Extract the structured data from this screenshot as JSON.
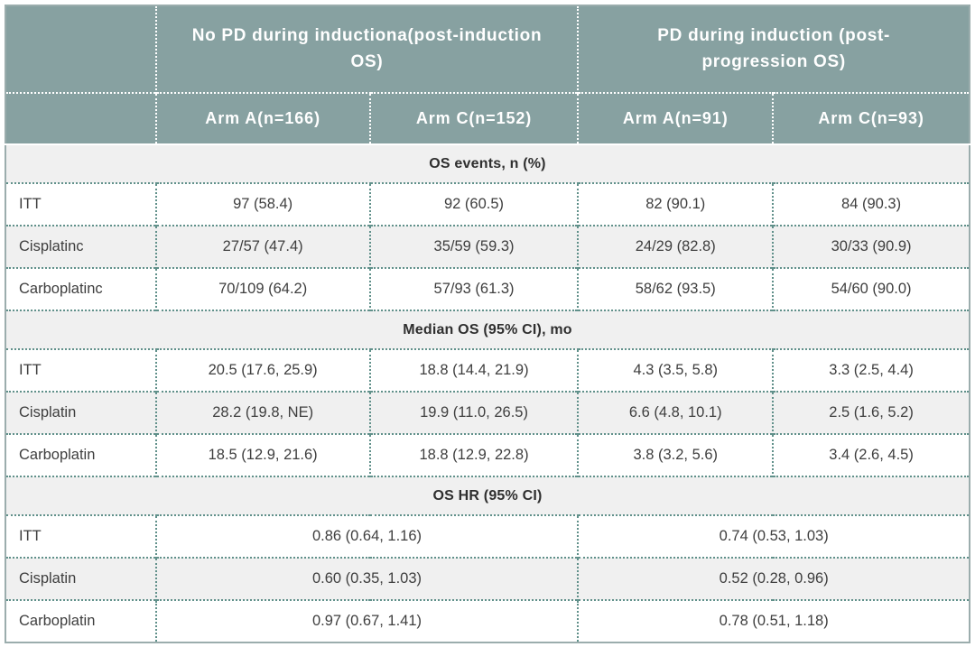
{
  "table": {
    "group_headers": [
      {
        "label": "No PD during inductiona(post-induction OS)"
      },
      {
        "label": "PD during induction (post-progression OS)"
      }
    ],
    "arm_headers": [
      "Arm A(n=166)",
      "Arm C(n=152)",
      "Arm A(n=91)",
      "Arm C(n=93)"
    ],
    "sections": [
      {
        "title": "OS events, n (%)",
        "rows": [
          {
            "label": "ITT",
            "values": [
              "97 (58.4)",
              "92 (60.5)",
              "82 (90.1)",
              "84 (90.3)"
            ]
          },
          {
            "label": "Cisplatinc",
            "values": [
              "27/57 (47.4)",
              "35/59 (59.3)",
              "24/29 (82.8)",
              "30/33 (90.9)"
            ]
          },
          {
            "label": "Carboplatinc",
            "values": [
              "70/109 (64.2)",
              "57/93 (61.3)",
              "58/62 (93.5)",
              "54/60 (90.0)"
            ]
          }
        ]
      },
      {
        "title": "Median OS (95% CI), mo",
        "rows": [
          {
            "label": "ITT",
            "values": [
              "20.5 (17.6, 25.9)",
              "18.8 (14.4, 21.9)",
              "4.3 (3.5, 5.8)",
              "3.3 (2.5, 4.4)"
            ]
          },
          {
            "label": "Cisplatin",
            "values": [
              "28.2 (19.8, NE)",
              "19.9 (11.0, 26.5)",
              "6.6 (4.8, 10.1)",
              "2.5 (1.6, 5.2)"
            ]
          },
          {
            "label": "Carboplatin",
            "values": [
              "18.5 (12.9, 21.6)",
              "18.8 (12.9, 22.8)",
              "3.8 (3.2, 5.6)",
              "3.4 (2.6, 4.5)"
            ]
          }
        ]
      },
      {
        "title": "OS HR (95% CI)",
        "rows": [
          {
            "label": "ITT",
            "values": [
              "0.86 (0.64, 1.16)",
              "0.74 (0.53, 1.03)"
            ]
          },
          {
            "label": "Cisplatin",
            "values": [
              "0.60 (0.35, 1.03)",
              "0.52 (0.28, 0.96)"
            ]
          },
          {
            "label": "Carboplatin",
            "values": [
              "0.97 (0.67, 1.41)",
              "0.78 (0.51, 1.18)"
            ]
          }
        ]
      }
    ],
    "colors": {
      "header_bg": "#87a1a1",
      "header_text": "#ffffff",
      "alt_row_bg": "#f0f0f0",
      "row_bg": "#ffffff",
      "body_text": "#3e3e3e",
      "dotted_border": "#60908a",
      "header_dotted_border": "#ffffff",
      "outer_border": "#9badad"
    }
  }
}
